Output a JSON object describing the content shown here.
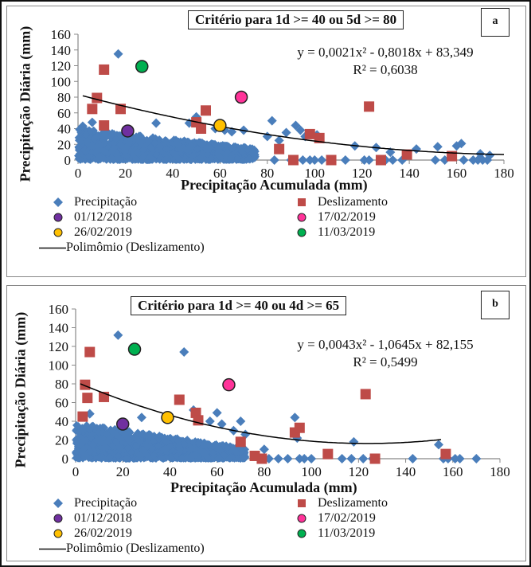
{
  "colors": {
    "precipitacao": "#4A7EBB",
    "deslizamento": "#BE4B48",
    "d_01_12_2018": "#7030A0",
    "d_17_02_2019": "#FF3399",
    "d_26_02_2019": "#FFC000",
    "d_11_03_2019": "#00B050",
    "trend": "#000000"
  },
  "chart_data": [
    {
      "id": "a",
      "type": "scatter",
      "panel_label": "a",
      "title": "Critério para 1d >= 40 ou 5d >= 80",
      "xlabel": "Precipitação Acumulada (mm)",
      "ylabel": "Precipitação Diária (mm)",
      "xlim": [
        0,
        180
      ],
      "ylim": [
        0,
        160
      ],
      "xticks": [
        0,
        20,
        40,
        60,
        80,
        100,
        120,
        140,
        160,
        180
      ],
      "yticks": [
        0,
        20,
        40,
        60,
        80,
        100,
        120,
        140,
        160
      ],
      "grid": false,
      "equation": "y = 0,0021x² - 0,8018x + 83,349",
      "r2": "R² = 0,6038",
      "trend": {
        "name": "Polinômio (Deslizamento)",
        "coeffs": [
          0.0021,
          -0.8018,
          83.349
        ],
        "x_range": [
          2,
          180
        ]
      },
      "series": [
        {
          "name": "Precipitação",
          "marker": "diamond",
          "color_key": "precipitacao",
          "cloud": {
            "x_range": [
              0,
              75
            ],
            "y_max_at_x0": 40,
            "y_max_at_x75": 15
          },
          "points": [
            [
              17,
              135
            ],
            [
              6,
              48
            ],
            [
              2,
              43
            ],
            [
              33,
              47
            ],
            [
              47,
              47
            ],
            [
              50,
              55
            ],
            [
              58,
              40
            ],
            [
              62,
              38
            ],
            [
              82,
              50
            ],
            [
              65,
              36
            ],
            [
              70,
              38
            ],
            [
              80,
              30
            ],
            [
              85,
              25
            ],
            [
              92,
              44
            ],
            [
              94,
              38
            ],
            [
              96,
              30
            ],
            [
              88,
              35
            ],
            [
              101,
              32
            ],
            [
              117,
              18
            ],
            [
              126,
              16
            ],
            [
              132,
              10
            ],
            [
              143,
              14
            ],
            [
              152,
              17
            ],
            [
              160,
              18
            ],
            [
              162,
              21
            ],
            [
              170,
              8
            ],
            [
              174,
              6
            ],
            [
              83,
              0
            ],
            [
              90,
              0
            ],
            [
              95,
              0
            ],
            [
              98,
              0
            ],
            [
              100,
              0
            ],
            [
              103,
              0
            ],
            [
              113,
              0
            ],
            [
              121,
              0
            ],
            [
              123,
              0
            ],
            [
              130,
              0
            ],
            [
              133,
              0
            ],
            [
              137,
              0
            ],
            [
              151,
              0
            ],
            [
              155,
              0
            ],
            [
              163,
              0
            ],
            [
              167,
              0
            ],
            [
              169,
              0
            ],
            [
              171,
              0
            ],
            [
              173,
              0
            ]
          ]
        },
        {
          "name": "Deslizamento",
          "marker": "square",
          "color_key": "deslizamento",
          "points": [
            [
              11,
              115
            ],
            [
              8,
              79
            ],
            [
              6,
              65
            ],
            [
              18,
              65
            ],
            [
              11,
              44
            ],
            [
              50,
              48
            ],
            [
              52,
              40
            ],
            [
              54,
              63
            ],
            [
              85,
              14
            ],
            [
              91,
              0
            ],
            [
              98,
              33
            ],
            [
              102,
              28
            ],
            [
              107,
              0
            ],
            [
              123,
              68
            ],
            [
              128,
              0
            ],
            [
              139,
              7
            ],
            [
              158,
              5
            ]
          ]
        },
        {
          "name": "01/12/2018",
          "marker": "circle",
          "color_key": "d_01_12_2018",
          "points": [
            [
              21,
              37
            ]
          ]
        },
        {
          "name": "17/02/2019",
          "marker": "circle",
          "color_key": "d_17_02_2019",
          "points": [
            [
              69,
              80
            ]
          ]
        },
        {
          "name": "26/02/2019",
          "marker": "circle",
          "color_key": "d_26_02_2019",
          "points": [
            [
              60,
              44
            ]
          ]
        },
        {
          "name": "11/03/2019",
          "marker": "circle",
          "color_key": "d_11_03_2019",
          "points": [
            [
              27,
              119
            ]
          ]
        }
      ],
      "legend": [
        "Precipitação",
        "Deslizamento",
        "01/12/2018",
        "17/02/2019",
        "26/02/2019",
        "11/03/2019",
        "Polimômio (Deslizamento)"
      ],
      "legend_placement": "bottom"
    },
    {
      "id": "b",
      "type": "scatter",
      "panel_label": "b",
      "title": "Critério para 1d >= 40 ou 4d >= 65",
      "xlabel": "Precipitação Acumulada (mm)",
      "ylabel": "Precipitação Diária (mm)",
      "xlim": [
        0,
        180
      ],
      "ylim": [
        0,
        160
      ],
      "xticks": [
        0,
        20,
        40,
        60,
        80,
        100,
        120,
        140,
        160,
        180
      ],
      "yticks": [
        0,
        20,
        40,
        60,
        80,
        100,
        120,
        140,
        160
      ],
      "grid": false,
      "equation": "y = 0,0043x² - 1,0645x + 82,155",
      "r2": "R² = 0,5499",
      "trend": {
        "name": "Polinômio (Deslizamento)",
        "coeffs": [
          0.0043,
          -1.0645,
          82.155
        ],
        "x_range": [
          2,
          155
        ]
      },
      "series": [
        {
          "name": "Precipitação",
          "marker": "diamond",
          "color_key": "precipitacao",
          "cloud": {
            "x_range": [
              0,
              72
            ],
            "y_max_at_x0": 38,
            "y_max_at_x75": 10
          },
          "points": [
            [
              18,
              132
            ],
            [
              46,
              114
            ],
            [
              6,
              48
            ],
            [
              28,
              44
            ],
            [
              50,
              52
            ],
            [
              60,
              49
            ],
            [
              57,
              40
            ],
            [
              62,
              37
            ],
            [
              52,
              41
            ],
            [
              70,
              40
            ],
            [
              67,
              30
            ],
            [
              72,
              26
            ],
            [
              80,
              10
            ],
            [
              93,
              44
            ],
            [
              94,
              22
            ],
            [
              118,
              18
            ],
            [
              154,
              15
            ],
            [
              82,
              0
            ],
            [
              86,
              0
            ],
            [
              90,
              0
            ],
            [
              95,
              0
            ],
            [
              97,
              0
            ],
            [
              100,
              0
            ],
            [
              113,
              0
            ],
            [
              117,
              0
            ],
            [
              122,
              0
            ],
            [
              126,
              0
            ],
            [
              143,
              0
            ],
            [
              156,
              0
            ],
            [
              158,
              0
            ],
            [
              161,
              0
            ],
            [
              163,
              0
            ],
            [
              170,
              0
            ]
          ]
        },
        {
          "name": "Deslizamento",
          "marker": "square",
          "color_key": "deslizamento",
          "points": [
            [
              6,
              114
            ],
            [
              4,
              79
            ],
            [
              5,
              65
            ],
            [
              12,
              66
            ],
            [
              3,
              45
            ],
            [
              44,
              63
            ],
            [
              51,
              49
            ],
            [
              52,
              41
            ],
            [
              70,
              18
            ],
            [
              76,
              3
            ],
            [
              79,
              0
            ],
            [
              93,
              28
            ],
            [
              95,
              33
            ],
            [
              107,
              5
            ],
            [
              123,
              69
            ],
            [
              127,
              0
            ],
            [
              157,
              5
            ]
          ]
        },
        {
          "name": "01/12/2018",
          "marker": "circle",
          "color_key": "d_01_12_2018",
          "points": [
            [
              20,
              37
            ]
          ]
        },
        {
          "name": "17/02/2019",
          "marker": "circle",
          "color_key": "d_17_02_2019",
          "points": [
            [
              65,
              79
            ]
          ]
        },
        {
          "name": "26/02/2019",
          "marker": "circle",
          "color_key": "d_26_02_2019",
          "points": [
            [
              39,
              44
            ]
          ]
        },
        {
          "name": "11/03/2019",
          "marker": "circle",
          "color_key": "d_11_03_2019",
          "points": [
            [
              25,
              117
            ]
          ]
        }
      ],
      "legend": [
        "Precipitação",
        "Deslizamento",
        "01/12/2018",
        "17/02/2019",
        "26/02/2019",
        "11/03/2019",
        "Polimômio (Deslizamento)"
      ],
      "legend_placement": "bottom"
    }
  ]
}
